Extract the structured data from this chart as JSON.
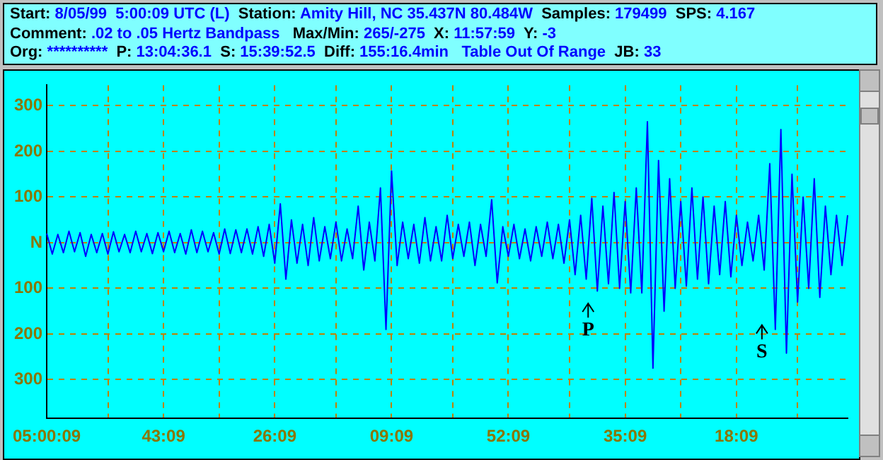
{
  "chart_data": {
    "type": "line",
    "annotations": [
      "Start: 8/05/99  5:00:09 UTC (L)  Station: Amity Hill, NC 35.437N 80.484W  Samples: 179499  SPS: 4.167",
      "Comment: .02 to .05 Hertz Bandpass   Max/Min: 265/-275  X: 11:57:59  Y: -3",
      "Org: **********  P: 13:04:36.1  S: 15:39:52.5  Diff: 155:16.4min   Table Out Of Range  JB: 33",
      "P",
      "S"
    ],
    "categories": [
      "05:00:09",
      null,
      null,
      null,
      null,
      null,
      null,
      null,
      null,
      null,
      null,
      null,
      null,
      null,
      null,
      null,
      null,
      null,
      null,
      null,
      null,
      "43:09",
      null,
      null,
      null,
      null,
      null,
      null,
      null,
      null,
      null,
      null,
      null,
      null,
      null,
      null,
      null,
      null,
      null,
      null,
      null,
      "26:09",
      null,
      null,
      null,
      null,
      null,
      null,
      null,
      null,
      null,
      null,
      null,
      null,
      null,
      null,
      null,
      null,
      null,
      null,
      null,
      null,
      "09:09",
      null,
      null,
      null,
      null,
      null,
      null,
      null,
      null,
      null,
      null,
      null,
      null,
      null,
      null,
      null,
      null,
      null,
      null,
      null,
      null,
      "52:09",
      null,
      null,
      null,
      null,
      null,
      null,
      null,
      null,
      null,
      null,
      null,
      null,
      null,
      null,
      null,
      null,
      null,
      null,
      null,
      null,
      "35:09",
      null,
      null,
      null,
      null,
      null,
      null,
      null,
      null,
      null,
      null,
      null,
      null,
      null,
      null,
      null,
      null,
      null,
      null,
      null,
      "18:09",
      null,
      null,
      null,
      null,
      null,
      null,
      null,
      null,
      null,
      null,
      null,
      null,
      null,
      null,
      null,
      null,
      null,
      null,
      null,
      null
    ],
    "series": [
      {
        "color": "#0000ff",
        "values": [
          20,
          -25,
          18,
          -22,
          25,
          -20,
          22,
          -30,
          18,
          -22,
          20,
          -25,
          24,
          -20,
          18,
          -22,
          25,
          -20,
          20,
          -24,
          22,
          -20,
          25,
          -22,
          20,
          -25,
          28,
          -22,
          25,
          -20,
          22,
          -25,
          30,
          -24,
          28,
          -22,
          30,
          -25,
          35,
          -30,
          40,
          -45,
          85,
          -80,
          50,
          -45,
          40,
          -50,
          55,
          -40,
          35,
          -35,
          45,
          -40,
          30,
          -35,
          80,
          -60,
          45,
          -40,
          120,
          -190,
          157,
          -50,
          45,
          -35,
          40,
          -45,
          55,
          -40,
          35,
          -40,
          60,
          -35,
          40,
          -30,
          45,
          -50,
          40,
          -30,
          94,
          -88,
          35,
          -30,
          40,
          -35,
          30,
          -40,
          35,
          -30,
          45,
          -35,
          40,
          -45,
          50,
          -70,
          60,
          -80,
          97,
          -106,
          80,
          -90,
          110,
          -100,
          90,
          -110,
          120,
          -110,
          265,
          -275,
          180,
          -150,
          140,
          -100,
          90,
          -95,
          120,
          -80,
          100,
          -90,
          80,
          -70,
          90,
          -75,
          60,
          -50,
          45,
          -40,
          60,
          -60,
          173,
          -190,
          248,
          -242,
          150,
          -130,
          100,
          -100,
          140,
          -120,
          80,
          -70,
          60,
          -50,
          60
        ]
      }
    ],
    "ylim": [
      -385,
      345
    ],
    "yticks": [
      300,
      200,
      100,
      {
        "value": 0,
        "label": "N"
      },
      {
        "value": -100,
        "label": "100"
      },
      {
        "value": -200,
        "label": "200"
      },
      {
        "value": -300,
        "label": "300"
      }
    ],
    "grid": true,
    "legend": false,
    "marker": "none",
    "line_style": "solid"
  }
}
